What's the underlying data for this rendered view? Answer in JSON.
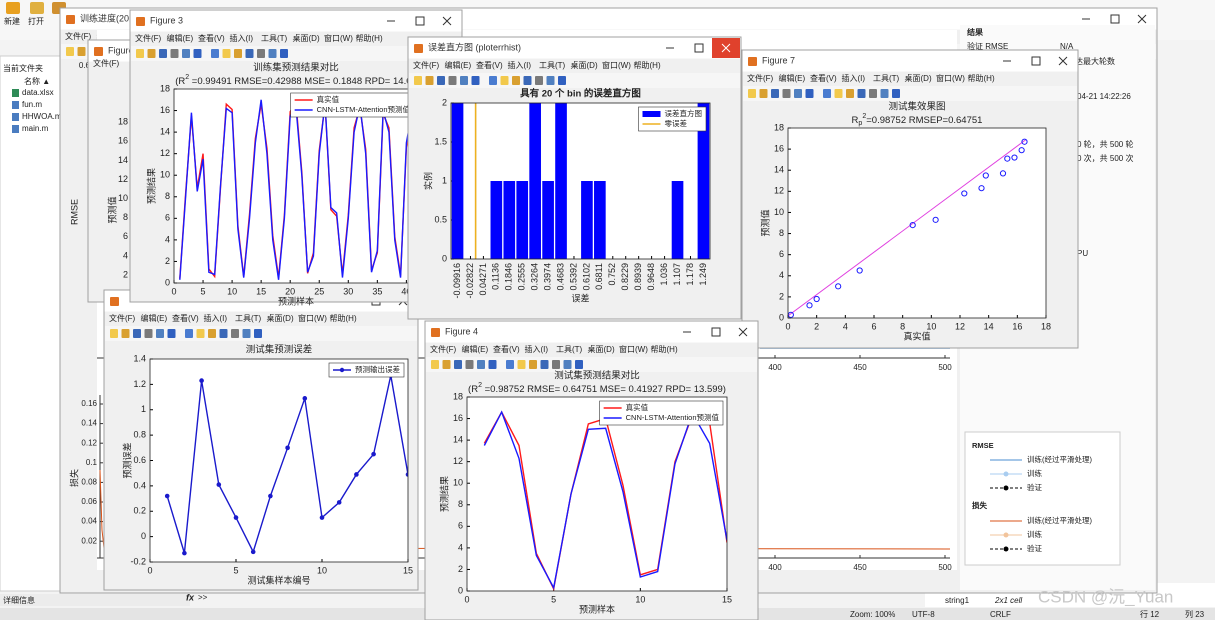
{
  "ui": {
    "toolbar": [
      "新建",
      "打开"
    ],
    "current_folder": "当前文件夹",
    "name_header": "名称 ▲",
    "files": [
      "data.xlsx",
      "fun.m",
      "HHWOA.m",
      "main.m"
    ],
    "details": "详细信息",
    "prompt_fx": "fx",
    "prompt": ">>",
    "workspace": [
      "string",
      "string1",
      "2x1 cell"
    ],
    "status": [
      "Zoom: 100%",
      "UTF-8",
      "CRLF",
      "行 12",
      "列 23"
    ],
    "watermark": "CSDN @沅_Yuan",
    "progress": {
      "title": "训练进度(2025-04-",
      "rmse_label": "RMSE",
      "rmse_yticks": [
        0.6
      ],
      "loss_label": "损失",
      "loss_yticks": [
        0.16,
        0.14,
        0.12,
        0.1,
        0.08,
        0.06,
        0.04,
        0.02
      ],
      "xticks": [
        400,
        450,
        500
      ],
      "results": "结果",
      "val_rmse": "验证 RMSE",
      "na": "N/A",
      "max_epochs": "达最大轮数",
      "time": "04-21 14:22:26",
      "epochs": "0 轮，共 500 轮",
      "iterations": "0 次，共 500 次",
      "hw": "PU",
      "legend": {
        "rmse": "RMSE",
        "loss": "损失",
        "smoothed": "训练(经过平滑处理)",
        "train": "训练",
        "validation": "验证"
      }
    },
    "behind_figure": {
      "title": "Figure",
      "ylabel": "预测值",
      "yticks": [
        18,
        16,
        14,
        12,
        10,
        8,
        6,
        4,
        2
      ]
    }
  },
  "menu": [
    "文件(F)",
    "编辑(E)",
    "查看(V)",
    "插入(I)",
    "工具(T)",
    "桌面(D)",
    "窗口(W)",
    "帮助(H)"
  ],
  "chart_data": [
    {
      "type": "line",
      "window_title": "Figure 3",
      "title": "训练集预测结果对比",
      "subtitle": [
        "(R",
        "2",
        " =0.99491 RMSE=0.42988 MSE= 0.1848 RPD= 14.01"
      ],
      "subtitle_format": [
        "",
        "sup",
        ""
      ],
      "xlabel": "预测样本",
      "ylabel": "预测结果",
      "x": [
        1,
        2,
        3,
        4,
        5,
        6,
        7,
        8,
        9,
        10,
        11,
        12,
        13,
        14,
        15,
        16,
        17,
        18,
        19,
        20,
        21,
        22,
        23,
        24,
        25,
        26,
        27,
        28,
        29,
        30,
        31,
        32,
        33,
        34,
        35,
        36,
        37,
        38,
        39,
        40,
        41
      ],
      "series": [
        {
          "name": "真实值",
          "color": "#ff1a1a",
          "values": [
            0.4,
            8.3,
            15.5,
            8.8,
            12,
            1.3,
            0.6,
            8.8,
            16.6,
            16.1,
            5.3,
            0.6,
            6.4,
            13.4,
            16.6,
            12.5,
            4.4,
            0.5,
            6.3,
            15.9,
            16.7,
            10.3,
            0.9,
            2.8,
            12.3,
            16.6,
            6.8,
            6.2,
            0.8,
            6.3,
            14.4,
            16.3,
            12.4,
            1.2,
            2.8,
            15.7,
            14.4,
            4.3,
            0.7,
            12.6,
            15.7
          ]
        },
        {
          "name": "CNN-LSTM-Attention预测值",
          "color": "#1a1aff",
          "values": [
            0.3,
            8,
            15.8,
            8.5,
            11.5,
            1,
            0.8,
            9,
            16.2,
            15.8,
            5,
            0.5,
            6,
            13,
            17,
            12,
            4,
            0.3,
            6,
            15.5,
            16.3,
            10,
            1,
            2.5,
            12,
            16.7,
            7,
            6.5,
            0.5,
            6,
            14,
            16.5,
            12,
            1,
            3,
            16,
            14,
            4,
            0.5,
            13,
            16
          ]
        }
      ],
      "xlim": [
        0,
        42
      ],
      "ylim": [
        0,
        18
      ],
      "xticks": [
        0,
        5,
        10,
        15,
        20,
        25,
        30,
        35,
        40
      ],
      "yticks": [
        0,
        2,
        4,
        6,
        8,
        10,
        12,
        14,
        16,
        18
      ],
      "legend": "northeast"
    },
    {
      "type": "bar",
      "window_title": "误差直方图 (ploterrhist)",
      "title": "具有 20 个 bin 的误差直方图",
      "xlabel": "误差",
      "ylabel": "实例",
      "x": [
        -0.09916,
        -0.02822,
        0.04271,
        0.1136,
        0.1846,
        0.2555,
        0.3264,
        0.3974,
        0.4683,
        0.5392,
        0.6102,
        0.6811,
        0.752,
        0.8229,
        0.8939,
        0.9648,
        1.036,
        1.107,
        1.178,
        1.249
      ],
      "series": [
        {
          "name": "误差直方图",
          "color": "#0000ff",
          "values": [
            2,
            0,
            0,
            1,
            1,
            1,
            2,
            1,
            2,
            0,
            1,
            1,
            0,
            0,
            0,
            0,
            0,
            1,
            0,
            2
          ]
        }
      ],
      "zero_line": {
        "name": "零误差",
        "color": "#edb120",
        "x": 0
      },
      "xlim": [
        -0.135,
        1.285
      ],
      "ylim": [
        0,
        2
      ],
      "xticks": [
        -0.09916,
        -0.02822,
        0.04271,
        0.1136,
        0.1846,
        0.2555,
        0.3264,
        0.3974,
        0.4683,
        0.5392,
        0.6102,
        0.6811,
        0.752,
        0.8229,
        0.8939,
        0.9648,
        1.036,
        1.107,
        1.178,
        1.249
      ],
      "yticks": [
        0,
        0.5,
        1,
        1.5,
        2
      ],
      "rotate_xticks": true,
      "legend": "northeast"
    },
    {
      "type": "scatter",
      "window_title": "Figure 7",
      "title": "测试集效果图",
      "subtitle": [
        "R",
        "p",
        "2",
        "=0.98752  RMSEP=0.64751"
      ],
      "subtitle_format": [
        "",
        "sub",
        "sup",
        ""
      ],
      "xlabel": "真实值",
      "ylabel": "预测值",
      "x": [
        0.2,
        1.5,
        2,
        3.5,
        5,
        8.7,
        10.3,
        12.3,
        13.5,
        13.8,
        15,
        15.3,
        15.8,
        16.3,
        16.5
      ],
      "series": [
        {
          "color": "#1a1aff",
          "values": [
            0.3,
            1.2,
            1.8,
            3,
            4.5,
            8.8,
            9.3,
            11.8,
            12.3,
            13.5,
            13.7,
            15.1,
            15.2,
            15.9,
            16.7
          ]
        }
      ],
      "fit_line": {
        "color": "#e040e0",
        "x": [
          0,
          16.6
        ],
        "y": [
          0.2,
          16.9
        ]
      },
      "xlim": [
        0,
        18
      ],
      "ylim": [
        0,
        18
      ],
      "xticks": [
        0,
        2,
        4,
        6,
        8,
        10,
        12,
        14,
        16,
        18
      ],
      "yticks": [
        0,
        2,
        4,
        6,
        8,
        10,
        12,
        14,
        16,
        18
      ]
    },
    {
      "type": "line",
      "title": "测试集预测误差",
      "xlabel": "测试集样本编号",
      "ylabel": "预测误差",
      "x": [
        1,
        2,
        3,
        4,
        5,
        6,
        7,
        8,
        9,
        10,
        11,
        12,
        13,
        14,
        15
      ],
      "series": [
        {
          "name": "预测输出误差",
          "color": "#1a1acc",
          "marker": "o",
          "values": [
            0.32,
            -0.13,
            1.23,
            0.41,
            0.15,
            -0.12,
            0.32,
            0.7,
            1.09,
            0.15,
            0.27,
            0.49,
            0.65,
            1.27,
            0.49
          ]
        }
      ],
      "xlim": [
        0,
        15
      ],
      "ylim": [
        -0.2,
        1.4
      ],
      "xticks": [
        0,
        5,
        10,
        15
      ],
      "yticks": [
        -0.2,
        0,
        0.2,
        0.4,
        0.6,
        0.8,
        1,
        1.2,
        1.4
      ],
      "legend": "northeast"
    },
    {
      "type": "line",
      "window_title": "Figure 4",
      "title": "测试集预测结果对比",
      "subtitle": [
        "(R",
        "2",
        " =0.98752 RMSE= 0.64751 MSE= 0.41927 RPD= 13.599)"
      ],
      "subtitle_format": [
        "",
        "sup",
        ""
      ],
      "xlabel": "预测样本",
      "ylabel": "预测结果",
      "x": [
        1,
        2,
        3,
        4,
        5,
        6,
        7,
        8,
        9,
        10,
        11,
        12,
        13,
        14,
        15
      ],
      "series": [
        {
          "name": "真实值",
          "color": "#ff1a1a",
          "values": [
            13.7,
            16.6,
            13.5,
            3.5,
            0.2,
            9,
            15.5,
            16,
            9.8,
            1.5,
            2,
            12,
            16.3,
            15.6,
            4.5
          ]
        },
        {
          "name": "CNN-LSTM-Attention预测值",
          "color": "#1a1aff",
          "values": [
            13.5,
            16.6,
            12.3,
            3.3,
            0.3,
            9,
            15,
            15.1,
            9.2,
            1.3,
            1.8,
            11.8,
            16.5,
            13.7,
            4.7
          ]
        }
      ],
      "xlim": [
        0,
        15
      ],
      "ylim": [
        0,
        18
      ],
      "xticks": [
        0,
        5,
        10,
        15
      ],
      "yticks": [
        0,
        2,
        4,
        6,
        8,
        10,
        12,
        14,
        16,
        18
      ],
      "legend": "northeast"
    }
  ]
}
